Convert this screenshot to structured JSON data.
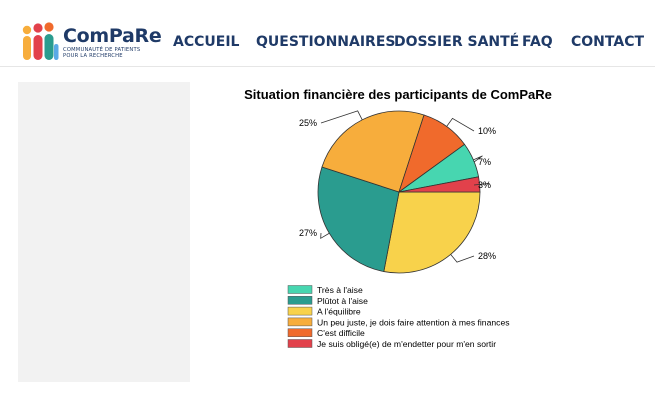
{
  "brand": {
    "name": "ComPaRe",
    "tagline_line1": "COMMUNAUTÉ DE PATIENTS",
    "tagline_line2": "POUR LA RECHERCHE"
  },
  "nav": {
    "items": [
      {
        "label": "ACCUEIL"
      },
      {
        "label": "QUESTIONNAIRES"
      },
      {
        "label": "DOSSIER SANTÉ"
      },
      {
        "label": "FAQ"
      },
      {
        "label": "CONTACT"
      }
    ]
  },
  "chart_data": {
    "type": "pie",
    "title": "Situation financière des participants de ComPaRe",
    "slices": [
      {
        "label": "Très à l'aise",
        "value": 7,
        "display": "7%",
        "color": "#47d6b0"
      },
      {
        "label": "Plûtot à l'aise",
        "value": 27,
        "display": "27%",
        "color": "#2a9c8f"
      },
      {
        "label": "A l'équilibre",
        "value": 28,
        "display": "28%",
        "color": "#f8d24b"
      },
      {
        "label": "Un peu juste, je dois faire attention à mes finances",
        "value": 25,
        "display": "25%",
        "color": "#f7ad3c"
      },
      {
        "label": "C'est difficile",
        "value": 10,
        "display": "10%",
        "color": "#f06a2c"
      },
      {
        "label": "Je suis obligé(e) de m'endetter pour m'en sortir",
        "value": 3,
        "display": "3%",
        "color": "#e2414b"
      }
    ],
    "legend_position": "bottom-left"
  }
}
